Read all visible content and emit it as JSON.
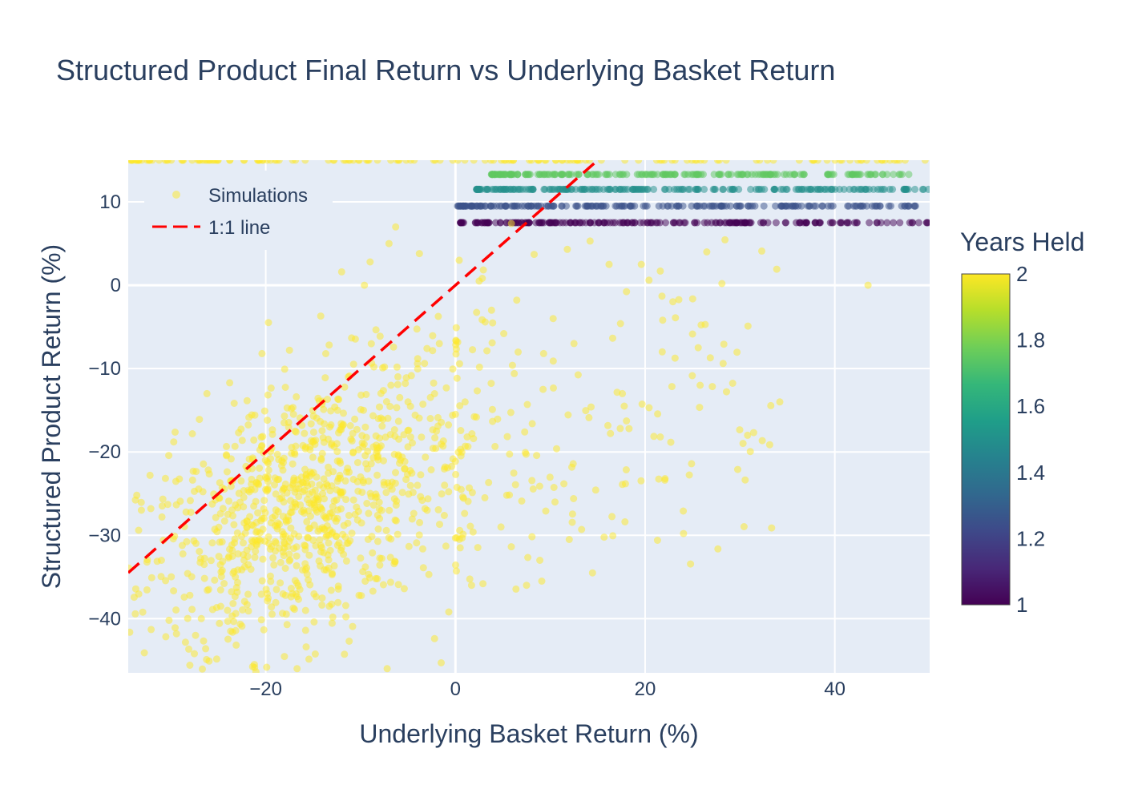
{
  "chart_data": {
    "type": "scatter",
    "title": "Structured Product Final Return vs Underlying Basket Return",
    "xlabel": "Underlying Basket Return (%)",
    "ylabel": "Structured Product Return (%)",
    "xlim": [
      -34.5,
      50
    ],
    "ylim": [
      -46.5,
      15
    ],
    "x_ticks": [
      -20,
      0,
      20,
      40
    ],
    "x_tick_labels": [
      "−20",
      "0",
      "20",
      "40"
    ],
    "y_ticks": [
      -40,
      -30,
      -20,
      -10,
      0,
      10
    ],
    "y_tick_labels": [
      "−40",
      "−30",
      "−20",
      "−10",
      "0",
      "10"
    ],
    "grid": true,
    "legend_position": "top-left",
    "series": [
      {
        "name": "Simulations",
        "mode": "markers",
        "color_by": "Years Held",
        "marker_opacity": 0.5,
        "point_groups": [
          {
            "description": "early autocall bands",
            "years_held": 1.0,
            "y": 7.5,
            "x_range": [
              0.5,
              50
            ]
          },
          {
            "description": "early autocall bands",
            "years_held": 1.25,
            "y": 9.5,
            "x_range": [
              0.2,
              49
            ]
          },
          {
            "description": "early autocall bands",
            "years_held": 1.5,
            "y": 11.5,
            "x_range": [
              2.2,
              50
            ]
          },
          {
            "description": "early autocall bands",
            "years_held": 1.75,
            "y": 13.3,
            "x_range": [
              3.8,
              49
            ]
          },
          {
            "description": "maturity capped band",
            "years_held": 2.0,
            "y": 15.0,
            "x_range": [
              -34.5,
              50
            ]
          },
          {
            "description": "maturity downside cloud",
            "years_held": 2.0,
            "cluster_center": [
              -16,
              -27
            ],
            "x_range": [
              -34.5,
              0
            ],
            "y_range": [
              -46.5,
              7
            ]
          },
          {
            "description": "maturity positive-basket scatter",
            "years_held": 2.0,
            "x_range": [
              0,
              34
            ],
            "y_range": [
              -37,
              7
            ]
          }
        ],
        "points": [
          [
            43.5,
            0.0
          ],
          [
            28.1,
            0.2
          ],
          [
            32.3,
            4.1
          ],
          [
            26.5,
            4.0
          ],
          [
            34.2,
            -14.0
          ],
          [
            30.8,
            -18.0
          ],
          [
            25.6,
            -7.5
          ],
          [
            25.8,
            -12.0
          ],
          [
            23.2,
            -3.9
          ],
          [
            22.1,
            -23.2
          ],
          [
            21.3,
            -30.6
          ],
          [
            21.6,
            -18.2
          ],
          [
            21.8,
            -8.0
          ],
          [
            21.6,
            1.7
          ],
          [
            19.6,
            2.5
          ],
          [
            16.2,
            2.5
          ],
          [
            17.4,
            -4.6
          ],
          [
            17.6,
            -13.0
          ],
          [
            17.8,
            -14.5
          ],
          [
            18.3,
            -17.2
          ],
          [
            17.6,
            -23.9
          ],
          [
            8.9,
            -33.0
          ],
          [
            7.5,
            -36.0
          ],
          [
            9.1,
            -35.5
          ],
          [
            10.5,
            -26.0
          ],
          [
            12.0,
            -30.5
          ],
          [
            13.3,
            -29.3
          ],
          [
            4.8,
            -29.0
          ],
          [
            2.9,
            -35.8
          ],
          [
            1.7,
            -36.0
          ],
          [
            0.5,
            -31.5
          ],
          [
            -1.0,
            -31.3
          ],
          [
            -2.8,
            -34.7
          ],
          [
            -2.2,
            -42.4
          ],
          [
            -7.2,
            -46.0
          ],
          [
            -1.5,
            -45.3
          ],
          [
            -16.7,
            -46.0
          ],
          [
            -0.7,
            -39.2
          ],
          [
            0.6,
            -24.5
          ],
          [
            1.9,
            -18.4
          ],
          [
            3.9,
            -14.9
          ],
          [
            6.2,
            -10.6
          ],
          [
            7.3,
            -17.6
          ],
          [
            9.3,
            -8.2
          ],
          [
            10.3,
            -4.0
          ],
          [
            12.5,
            -7.0
          ],
          [
            14.2,
            5.3
          ],
          [
            11.8,
            4.3
          ],
          [
            8.3,
            3.7
          ],
          [
            5.9,
            7.4
          ],
          [
            0.4,
            3.0
          ],
          [
            2.5,
            0.5
          ],
          [
            3.8,
            -3.0
          ],
          [
            5.1,
            -5.8
          ],
          [
            -6.3,
            7.0
          ],
          [
            -7.0,
            5.0
          ],
          [
            -3.8,
            3.8
          ],
          [
            -9.0,
            2.8
          ],
          [
            -12.0,
            1.6
          ],
          [
            -9.6,
            0.0
          ],
          [
            -14.2,
            -3.7
          ],
          [
            -17.5,
            -7.8
          ],
          [
            -20.4,
            -8.2
          ],
          [
            -23.8,
            -11.7
          ],
          [
            -27.0,
            -16.1
          ],
          [
            -26.2,
            -13.0
          ],
          [
            -29.7,
            -18.8
          ],
          [
            -32.2,
            -22.8
          ],
          [
            -33.6,
            -25.2
          ],
          [
            -33.4,
            -29.4
          ],
          [
            -31.0,
            -33.0
          ],
          [
            -28.0,
            -37.2
          ],
          [
            -25.6,
            -38.9
          ],
          [
            -23.2,
            -35.0
          ],
          [
            -20.7,
            -30.5
          ],
          [
            -18.1,
            -26.0
          ],
          [
            -15.3,
            -22.4
          ],
          [
            -12.5,
            -19.0
          ],
          [
            -9.7,
            -15.0
          ],
          [
            -6.8,
            -12.0
          ],
          [
            -4.0,
            -9.4
          ],
          [
            -1.7,
            -7.0
          ],
          [
            -24.0,
            -27.5
          ],
          [
            -22.0,
            -29.0
          ],
          [
            -20.0,
            -24.5
          ],
          [
            -18.0,
            -31.0
          ],
          [
            -16.0,
            -27.0
          ],
          [
            -14.0,
            -25.0
          ],
          [
            -12.0,
            -31.5
          ],
          [
            -10.0,
            -23.0
          ],
          [
            -8.0,
            -28.0
          ],
          [
            -6.0,
            -20.5
          ],
          [
            -4.0,
            -24.0
          ],
          [
            -2.0,
            -17.5
          ],
          [
            -26.5,
            -33.5
          ],
          [
            -30.2,
            -40.2
          ],
          [
            -32.8,
            -44.1
          ],
          [
            -27.4,
            -42.0
          ],
          [
            -23.7,
            -41.5
          ],
          [
            -21.2,
            -45.5
          ],
          [
            -19.4,
            -38.6
          ],
          [
            -15.8,
            -41.4
          ],
          [
            -13.1,
            -36.6
          ],
          [
            -11.2,
            -42.7
          ],
          [
            -9.5,
            -33.8
          ],
          [
            -5.4,
            -36.4
          ],
          [
            -4.1,
            -30.9
          ],
          [
            -3.2,
            -26.8
          ],
          [
            -1.1,
            -21.8
          ],
          [
            -0.3,
            -15.6
          ],
          [
            -5.0,
            -14.0
          ],
          [
            -8.6,
            -9.8
          ],
          [
            -11.3,
            -11.0
          ],
          [
            -13.9,
            -14.9
          ],
          [
            -16.8,
            -17.6
          ],
          [
            -19.5,
            -20.8
          ],
          [
            -21.9,
            -22.1
          ],
          [
            -24.6,
            -24.3
          ],
          [
            -28.4,
            -27.2
          ],
          [
            -30.8,
            -30.6
          ]
        ]
      },
      {
        "name": "1:1 line",
        "mode": "lines",
        "color": "#ff0000",
        "dash": "dash",
        "x": [
          -34.5,
          15
        ],
        "y": [
          -34.5,
          15
        ]
      }
    ],
    "colorbar": {
      "title": "Years Held",
      "range": [
        1,
        2
      ],
      "ticks": [
        1,
        1.2,
        1.4,
        1.6,
        1.8,
        2
      ],
      "tick_labels": [
        "1",
        "1.2",
        "1.4",
        "1.6",
        "1.8",
        "2"
      ],
      "colorscale": [
        "#440154",
        "#482878",
        "#3e4989",
        "#31688e",
        "#26828e",
        "#1f9e89",
        "#35b779",
        "#6ece58",
        "#b5de2b",
        "#fde725"
      ]
    }
  },
  "colors": {
    "plot_background": "#e5ecf6",
    "grid": "#ffffff",
    "text": "#2a3f5f",
    "identity_line": "#ff0000"
  }
}
